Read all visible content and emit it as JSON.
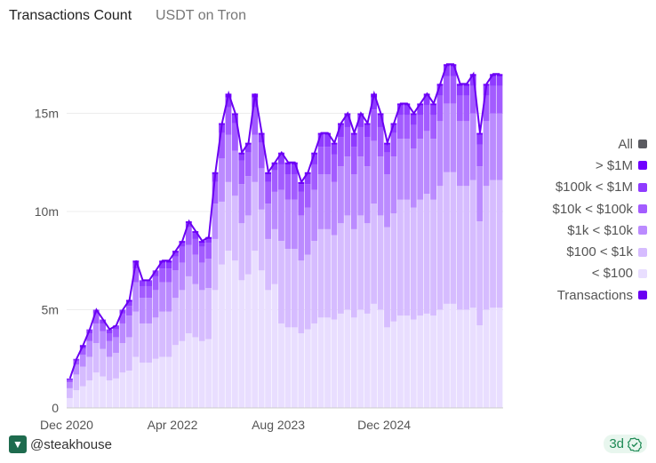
{
  "header": {
    "title": "Transactions Count",
    "subtitle": "USDT on Tron"
  },
  "footer": {
    "author": "@steakhouse",
    "freshness": "3d"
  },
  "chart_data": {
    "type": "bar",
    "stacked": true,
    "title": "Transactions Count",
    "subtitle": "USDT on Tron",
    "ylim": [
      0,
      18
    ],
    "y_unit": "m",
    "yticks": [
      "0",
      "5m",
      "10m",
      "15m"
    ],
    "ytick_values": [
      0,
      5,
      10,
      15
    ],
    "xticks": [
      "Dec 2020",
      "Apr 2022",
      "Aug 2023",
      "Dec 2024"
    ],
    "xtick_index": [
      0,
      16,
      32,
      48
    ],
    "grid": true,
    "legend_position": "right",
    "legend": [
      {
        "name": "All",
        "color": "#5a5a60"
      },
      {
        "name": "> $1M",
        "color": "#7000ff"
      },
      {
        "name": "$100k < $1M",
        "color": "#8f3bff"
      },
      {
        "name": "$10k < $100k",
        "color": "#a35cff"
      },
      {
        "name": "$1k < $10k",
        "color": "#bb8bff"
      },
      {
        "name": "$100 < $1k",
        "color": "#d6bcff"
      },
      {
        "name": "< $100",
        "color": "#e9deff"
      },
      {
        "name": "Transactions",
        "color": "#6a00f2"
      }
    ],
    "series": [
      {
        "name": "< $100",
        "color": "#e9deff",
        "values": [
          0.5,
          0.9,
          1.1,
          1.4,
          1.8,
          1.6,
          1.4,
          1.5,
          1.8,
          1.9,
          2.6,
          2.3,
          2.3,
          2.5,
          2.6,
          2.6,
          3.2,
          3.4,
          3.8,
          3.6,
          3.4,
          3.5,
          6.0,
          7.3,
          8.0,
          7.5,
          6.5,
          6.8,
          8.0,
          7.0,
          6.0,
          6.3,
          4.3,
          4.1,
          4.1,
          3.8,
          4.0,
          4.3,
          4.6,
          4.6,
          4.5,
          4.8,
          5.0,
          4.6,
          5.0,
          4.8,
          5.3,
          5.0,
          4.1,
          4.4,
          4.7,
          4.7,
          4.5,
          4.7,
          4.8,
          4.7,
          5.0,
          5.3,
          5.3,
          5.0,
          5.0,
          5.1,
          4.2,
          5.0,
          5.1,
          5.1
        ]
      },
      {
        "name": "$100 < $1k",
        "color": "#d6bcff",
        "values": [
          0.5,
          0.8,
          1.0,
          1.2,
          1.5,
          1.4,
          1.2,
          1.3,
          1.5,
          1.7,
          2.3,
          2.0,
          2.0,
          2.1,
          2.3,
          2.3,
          2.4,
          2.6,
          2.9,
          2.7,
          2.6,
          2.6,
          2.6,
          3.2,
          3.5,
          3.3,
          2.9,
          3.0,
          3.5,
          3.1,
          2.6,
          2.8,
          4.2,
          4.0,
          4.0,
          3.7,
          3.8,
          4.2,
          4.5,
          4.5,
          4.3,
          4.6,
          4.8,
          4.5,
          4.8,
          4.6,
          5.1,
          4.8,
          5.1,
          5.5,
          5.9,
          5.9,
          5.7,
          5.9,
          6.1,
          5.9,
          6.3,
          6.7,
          6.7,
          6.3,
          6.3,
          6.5,
          5.3,
          6.3,
          6.5,
          6.5
        ]
      },
      {
        "name": "$1k < $10k",
        "color": "#bb8bff",
        "values": [
          0.3,
          0.5,
          0.6,
          0.8,
          1.0,
          0.9,
          0.8,
          0.8,
          1.0,
          1.1,
          1.5,
          1.3,
          1.3,
          1.4,
          1.5,
          1.5,
          1.4,
          1.4,
          1.6,
          1.5,
          1.4,
          1.5,
          1.8,
          2.2,
          2.4,
          2.3,
          2.0,
          2.0,
          2.4,
          2.1,
          1.8,
          1.9,
          2.6,
          2.5,
          2.5,
          2.3,
          2.4,
          2.6,
          2.8,
          2.8,
          2.7,
          2.9,
          3.0,
          2.8,
          3.0,
          2.9,
          3.2,
          3.0,
          2.7,
          2.9,
          3.1,
          3.1,
          3.0,
          3.1,
          3.2,
          3.1,
          3.3,
          3.5,
          3.5,
          3.3,
          3.3,
          3.4,
          2.8,
          3.3,
          3.4,
          3.4
        ]
      },
      {
        "name": "$10k < $100k",
        "color": "#a35cff",
        "values": [
          0.1,
          0.2,
          0.3,
          0.4,
          0.5,
          0.4,
          0.4,
          0.4,
          0.5,
          0.5,
          0.7,
          0.6,
          0.6,
          0.7,
          0.7,
          0.7,
          0.7,
          0.8,
          0.9,
          0.8,
          0.8,
          0.8,
          1.1,
          1.3,
          1.4,
          1.4,
          1.2,
          1.2,
          1.4,
          1.3,
          1.1,
          1.1,
          1.3,
          1.3,
          1.3,
          1.2,
          1.2,
          1.3,
          1.4,
          1.4,
          1.4,
          1.5,
          1.5,
          1.4,
          1.5,
          1.5,
          1.6,
          1.5,
          1.1,
          1.2,
          1.2,
          1.2,
          1.2,
          1.2,
          1.3,
          1.2,
          1.3,
          1.4,
          1.4,
          1.3,
          1.3,
          1.4,
          1.1,
          1.3,
          1.4,
          1.4
        ]
      },
      {
        "name": "$100k < $1M",
        "color": "#8f3bff",
        "values": [
          0.1,
          0.1,
          0.1,
          0.2,
          0.2,
          0.2,
          0.2,
          0.2,
          0.2,
          0.2,
          0.3,
          0.3,
          0.3,
          0.3,
          0.3,
          0.3,
          0.2,
          0.2,
          0.2,
          0.3,
          0.2,
          0.2,
          0.4,
          0.4,
          0.5,
          0.4,
          0.3,
          0.4,
          0.5,
          0.4,
          0.4,
          0.3,
          0.5,
          0.5,
          0.5,
          0.4,
          0.5,
          0.5,
          0.6,
          0.6,
          0.5,
          0.6,
          0.6,
          0.6,
          0.6,
          0.6,
          0.6,
          0.6,
          0.4,
          0.4,
          0.5,
          0.5,
          0.5,
          0.5,
          0.5,
          0.5,
          0.5,
          0.5,
          0.5,
          0.5,
          0.5,
          0.5,
          0.5,
          0.5,
          0.5,
          0.5
        ]
      },
      {
        "name": "> $1M",
        "color": "#7000ff",
        "values": [
          0.0,
          0.0,
          0.1,
          0.0,
          0.0,
          0.0,
          0.0,
          0.0,
          0.0,
          0.1,
          0.1,
          0.0,
          0.0,
          0.0,
          0.1,
          0.1,
          0.1,
          0.1,
          0.1,
          0.1,
          0.1,
          0.1,
          0.1,
          0.1,
          0.2,
          0.1,
          0.1,
          0.1,
          0.2,
          0.1,
          0.1,
          0.1,
          0.1,
          0.1,
          0.1,
          0.1,
          0.1,
          0.1,
          0.1,
          0.1,
          0.1,
          0.1,
          0.1,
          0.1,
          0.1,
          0.1,
          0.2,
          0.1,
          0.1,
          0.1,
          0.1,
          0.1,
          0.1,
          0.1,
          0.1,
          0.1,
          0.1,
          0.1,
          0.1,
          0.1,
          0.1,
          0.1,
          0.1,
          0.1,
          0.1,
          0.1
        ]
      }
    ],
    "line": {
      "name": "Transactions",
      "color": "#6a00f2",
      "values": [
        1.5,
        2.5,
        3.2,
        4.0,
        5.0,
        4.5,
        4.0,
        4.2,
        5.0,
        5.5,
        7.5,
        6.5,
        6.5,
        7.0,
        7.5,
        7.5,
        8.0,
        8.5,
        9.5,
        9.0,
        8.5,
        8.7,
        12.0,
        14.5,
        16.0,
        15.0,
        13.0,
        13.5,
        16.0,
        14.0,
        12.0,
        12.5,
        13.0,
        12.5,
        12.5,
        11.5,
        12.0,
        13.0,
        14.0,
        14.0,
        13.5,
        14.5,
        15.0,
        14.0,
        15.0,
        14.5,
        16.0,
        15.0,
        13.5,
        14.5,
        15.5,
        15.5,
        15.0,
        15.5,
        16.0,
        15.5,
        16.5,
        17.5,
        17.5,
        16.5,
        16.5,
        17.0,
        14.0,
        16.5,
        17.0,
        17.0
      ]
    }
  }
}
